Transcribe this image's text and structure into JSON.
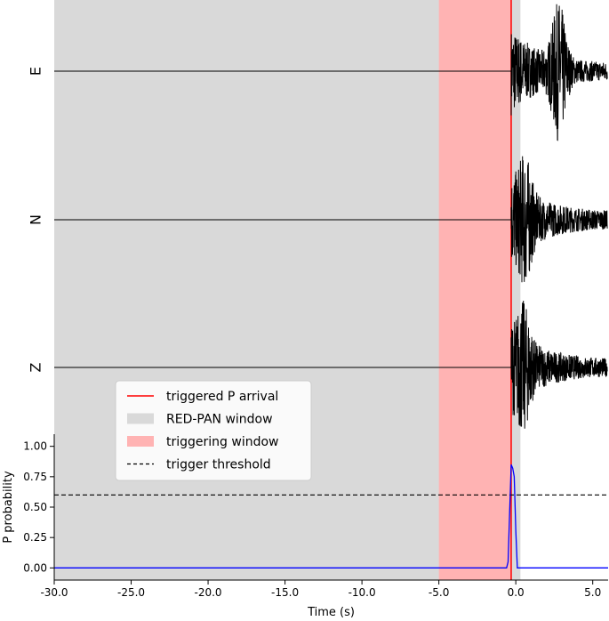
{
  "chart_data": {
    "type": "line",
    "xlabel": "Time (s)",
    "xlim": [
      -30.0,
      6.0
    ],
    "xticks": [
      -30.0,
      -25.0,
      -20.0,
      -15.0,
      -10.0,
      -5.0,
      0.0,
      5.0
    ],
    "xtick_labels": [
      "-30.0",
      "-25.0",
      "-20.0",
      "-15.0",
      "-10.0",
      "-5.0",
      "0.0",
      "5.0"
    ],
    "waveform_panel": {
      "traces": [
        {
          "name": "E",
          "noise_until": -0.3,
          "peak_time": 2.8
        },
        {
          "name": "N",
          "noise_until": -0.3,
          "peak_time": 0.6
        },
        {
          "name": "Z",
          "noise_until": -0.3,
          "peak_time": 0.5
        }
      ],
      "trace_color": "#000000"
    },
    "probability_panel": {
      "ylabel": "P probability",
      "ylim": [
        -0.1,
        1.1
      ],
      "yticks": [
        0.0,
        0.25,
        0.5,
        0.75,
        1.0
      ],
      "ytick_labels": [
        "0.00",
        "0.25",
        "0.50",
        "0.75",
        "1.00"
      ],
      "probability_curve": {
        "color": "#0000ff",
        "points": [
          [
            -30.0,
            0.0
          ],
          [
            -0.6,
            0.0
          ],
          [
            -0.5,
            0.05
          ],
          [
            -0.4,
            0.45
          ],
          [
            -0.3,
            0.85
          ],
          [
            -0.2,
            0.82
          ],
          [
            -0.1,
            0.75
          ],
          [
            0.0,
            0.3
          ],
          [
            0.1,
            0.0
          ],
          [
            6.0,
            0.0
          ]
        ]
      },
      "trigger_threshold": 0.6
    },
    "redpan_window": [
      -30.0,
      0.3
    ],
    "triggering_window": [
      -5.0,
      -0.3
    ],
    "triggered_p_arrival": -0.3,
    "legend": {
      "placement": "bottom-left, above probability axis",
      "entries": [
        {
          "label": "triggered P arrival",
          "style": "line",
          "color": "#ff0000"
        },
        {
          "label": "RED-PAN window",
          "style": "patch",
          "color": "#d9d9d9"
        },
        {
          "label": "triggering window",
          "style": "patch",
          "color": "#ffb3b3"
        },
        {
          "label": "trigger threshold",
          "style": "dashed",
          "color": "#000000"
        }
      ]
    },
    "colors": {
      "redpan_window": "#d9d9d9",
      "triggering_window": "#ffb3b3",
      "p_arrival": "#ff0000",
      "probability": "#0000ff",
      "threshold": "#000000"
    }
  }
}
